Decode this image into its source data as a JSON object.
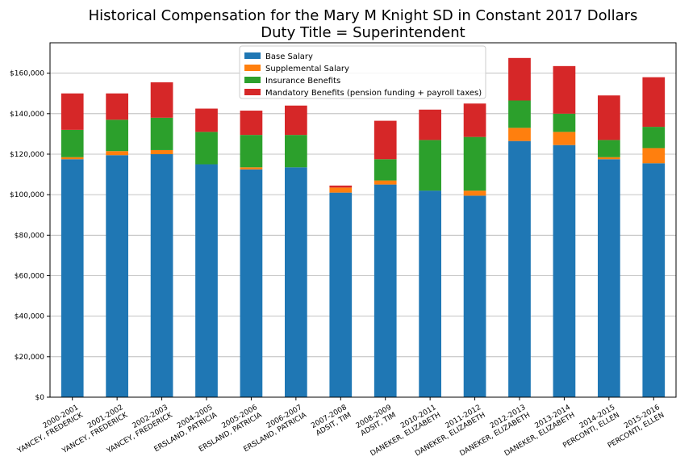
{
  "chart_data": {
    "type": "bar",
    "stacked": true,
    "title": "Historical Compensation for the Mary M Knight SD in Constant 2017 Dollars",
    "subtitle": "Duty Title = Superintendent",
    "categories": [
      [
        "2000-2001",
        "YANCEY, FREDERICK"
      ],
      [
        "2001-2002",
        "YANCEY, FREDERICK"
      ],
      [
        "2002-2003",
        "YANCEY, FREDERICK"
      ],
      [
        "2004-2005",
        "ERSLAND, PATRICIA"
      ],
      [
        "2005-2006",
        "ERSLAND, PATRICIA"
      ],
      [
        "2006-2007",
        "ERSLAND, PATRICIA"
      ],
      [
        "2007-2008",
        "ADSIT, TIM"
      ],
      [
        "2008-2009",
        "ADSIT, TIM"
      ],
      [
        "2010-2011",
        "DANEKER, ELIZABETH"
      ],
      [
        "2011-2012",
        "DANEKER, ELIZABETH"
      ],
      [
        "2012-2013",
        "DANEKER, ELIZABETH"
      ],
      [
        "2013-2014",
        "DANEKER, ELIZABETH"
      ],
      [
        "2014-2015",
        "PERCONTI, ELLEN"
      ],
      [
        "2015-2016",
        "PERCONTI, ELLEN"
      ]
    ],
    "series": [
      {
        "name": "Base Salary",
        "color": "#1f77b4",
        "values": [
          117500,
          119500,
          120000,
          115000,
          112500,
          113500,
          101000,
          105000,
          102000,
          99500,
          126500,
          124500,
          117500,
          115500
        ]
      },
      {
        "name": "Supplemental Salary",
        "color": "#ff7f0e",
        "values": [
          1000,
          2000,
          2000,
          0,
          1000,
          0,
          2500,
          2000,
          0,
          2500,
          6500,
          6500,
          1000,
          7500
        ]
      },
      {
        "name": "Insurance Benefits",
        "color": "#2ca02c",
        "values": [
          13500,
          15500,
          16000,
          16000,
          16000,
          16000,
          0,
          10500,
          25000,
          26500,
          13500,
          9000,
          8500,
          10500
        ]
      },
      {
        "name": "Mandatory Benefits (pension funding + payroll taxes)",
        "color": "#d62728",
        "values": [
          18000,
          13000,
          17500,
          11500,
          12000,
          14500,
          1000,
          19000,
          15000,
          16500,
          21000,
          23500,
          22000,
          24500
        ]
      }
    ],
    "yticks": [
      "$0",
      "$20,000",
      "$40,000",
      "$60,000",
      "$80,000",
      "$100,000",
      "$120,000",
      "$140,000",
      "$160,000"
    ],
    "ylim": [
      0,
      175000
    ],
    "grid": true,
    "legend": "top-center"
  }
}
